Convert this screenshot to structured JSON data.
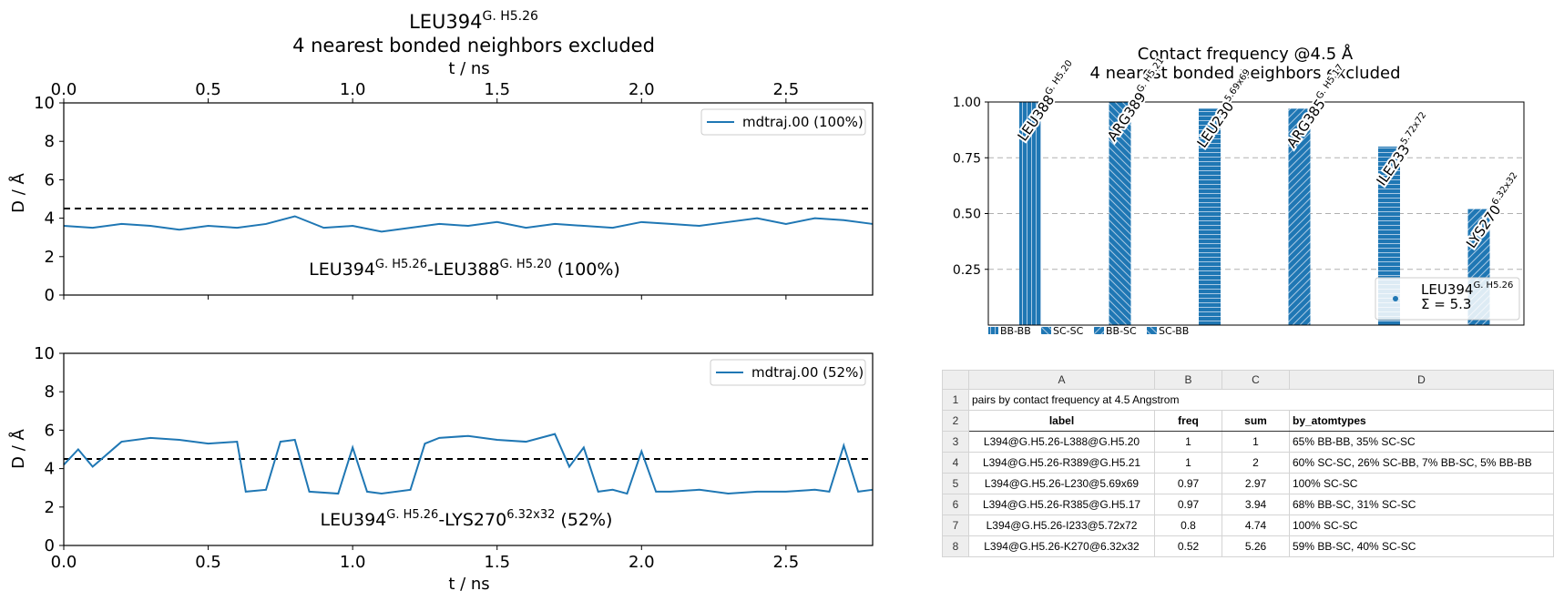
{
  "colors": {
    "series": "#1f77b4",
    "dashed": "#000000",
    "grid": "#b0b0b0"
  },
  "chart_data": [
    {
      "type": "line",
      "title_line1": "LEU394",
      "title_sup1": "G. H5.26",
      "title_line2": "4 nearest bonded neighbors excluded",
      "xlabel": "t / ns",
      "ylabel": "D / Å",
      "xlim": [
        0,
        2.8
      ],
      "ylim": [
        0,
        10
      ],
      "xticks": [
        "0.0",
        "0.5",
        "1.0",
        "1.5",
        "2.0",
        "2.5"
      ],
      "yticks": [
        "0",
        "2",
        "4",
        "6",
        "8",
        "10"
      ],
      "cutoff": 4.5,
      "legend": "mdtraj.00 (100%)",
      "annotation": {
        "pre": "LEU394",
        "sup1": "G. H5.26",
        "mid": "-LEU388",
        "sup2": "G. H5.20",
        "post": " (100%)"
      },
      "x": [
        0.0,
        0.1,
        0.2,
        0.3,
        0.4,
        0.5,
        0.6,
        0.7,
        0.8,
        0.9,
        1.0,
        1.1,
        1.2,
        1.3,
        1.4,
        1.5,
        1.6,
        1.7,
        1.8,
        1.9,
        2.0,
        2.1,
        2.2,
        2.3,
        2.4,
        2.5,
        2.6,
        2.7,
        2.8
      ],
      "y": [
        3.6,
        3.5,
        3.7,
        3.6,
        3.4,
        3.6,
        3.5,
        3.7,
        4.1,
        3.5,
        3.6,
        3.3,
        3.5,
        3.7,
        3.6,
        3.8,
        3.5,
        3.7,
        3.6,
        3.5,
        3.8,
        3.7,
        3.6,
        3.8,
        4.0,
        3.7,
        4.0,
        3.9,
        3.7
      ]
    },
    {
      "type": "line",
      "xlabel": "t / ns",
      "ylabel": "D / Å",
      "xlim": [
        0,
        2.8
      ],
      "ylim": [
        0,
        10
      ],
      "xticks": [
        "0.0",
        "0.5",
        "1.0",
        "1.5",
        "2.0",
        "2.5"
      ],
      "yticks": [
        "0",
        "2",
        "4",
        "6",
        "8",
        "10"
      ],
      "cutoff": 4.5,
      "legend": "mdtraj.00 (52%)",
      "annotation": {
        "pre": "LEU394",
        "sup1": "G. H5.26",
        "mid": "-LYS270",
        "sup2": "6.32x32",
        "post": " (52%)"
      },
      "x": [
        0.0,
        0.05,
        0.1,
        0.2,
        0.3,
        0.4,
        0.5,
        0.6,
        0.63,
        0.7,
        0.75,
        0.8,
        0.85,
        0.95,
        1.0,
        1.05,
        1.1,
        1.2,
        1.25,
        1.3,
        1.4,
        1.5,
        1.6,
        1.7,
        1.75,
        1.8,
        1.85,
        1.9,
        1.95,
        2.0,
        2.05,
        2.1,
        2.2,
        2.3,
        2.4,
        2.5,
        2.6,
        2.65,
        2.7,
        2.75,
        2.8
      ],
      "y": [
        4.2,
        5.0,
        4.1,
        5.4,
        5.6,
        5.5,
        5.3,
        5.4,
        2.8,
        2.9,
        5.4,
        5.5,
        2.8,
        2.7,
        5.1,
        2.8,
        2.7,
        2.9,
        5.3,
        5.6,
        5.7,
        5.5,
        5.4,
        5.8,
        4.1,
        5.1,
        2.8,
        2.9,
        2.7,
        4.9,
        2.8,
        2.8,
        2.9,
        2.7,
        2.8,
        2.8,
        2.9,
        2.8,
        5.2,
        2.8,
        2.9
      ]
    },
    {
      "type": "bar",
      "title_line1": "Contact frequency @4.5 Å",
      "title_line2": "4 nearest bonded neighbors excluded",
      "ylim": [
        0,
        1.0
      ],
      "yticks": [
        "0.25",
        "0.50",
        "0.75",
        "1.00"
      ],
      "ytick_values": [
        0.25,
        0.5,
        0.75,
        1.0
      ],
      "categories": [
        {
          "name": "LEU388",
          "sup": "G. H5.20"
        },
        {
          "name": "ARG389",
          "sup": "G. H5.21"
        },
        {
          "name": "LEU230",
          "sup": "5.69x69"
        },
        {
          "name": "ARG385",
          "sup": "G. H5.17"
        },
        {
          "name": "ILE233",
          "sup": "5.72x72"
        },
        {
          "name": "LYS270",
          "sup": "6.32x32"
        }
      ],
      "values": [
        1.0,
        1.0,
        0.97,
        0.97,
        0.8,
        0.52
      ],
      "hatch": [
        "vertical",
        "backslash",
        "horizontal",
        "slash",
        "horizontal",
        "slash"
      ],
      "hatch_legend": [
        "BB-BB",
        "SC-SC",
        "BB-SC",
        "SC-BB"
      ],
      "legend_name": "LEU394",
      "legend_sup": "G. H5.26",
      "legend_sum": "Σ = 5.3"
    }
  ],
  "sheet": {
    "columns": [
      "A",
      "B",
      "C",
      "D"
    ],
    "rownums": [
      "1",
      "2",
      "3",
      "4",
      "5",
      "6",
      "7",
      "8"
    ],
    "title": "pairs by contact frequency at 4.5 Angstrom",
    "headers": [
      "label",
      "freq",
      "sum",
      "by_atomtypes"
    ],
    "rows": [
      [
        "L394@G.H5.26-L388@G.H5.20",
        "1",
        "1",
        "65% BB-BB,  35% SC-SC"
      ],
      [
        "L394@G.H5.26-R389@G.H5.21",
        "1",
        "2",
        "60% SC-SC,  26% SC-BB,   7% BB-SC,   5% BB-BB"
      ],
      [
        "L394@G.H5.26-L230@5.69x69",
        "0.97",
        "2.97",
        "100% SC-SC"
      ],
      [
        "L394@G.H5.26-R385@G.H5.17",
        "0.97",
        "3.94",
        "68% BB-SC,  31% SC-SC"
      ],
      [
        "L394@G.H5.26-I233@5.72x72",
        "0.8",
        "4.74",
        "100% SC-SC"
      ],
      [
        "L394@G.H5.26-K270@6.32x32",
        "0.52",
        "5.26",
        "59% BB-SC,  40% SC-SC"
      ]
    ]
  }
}
